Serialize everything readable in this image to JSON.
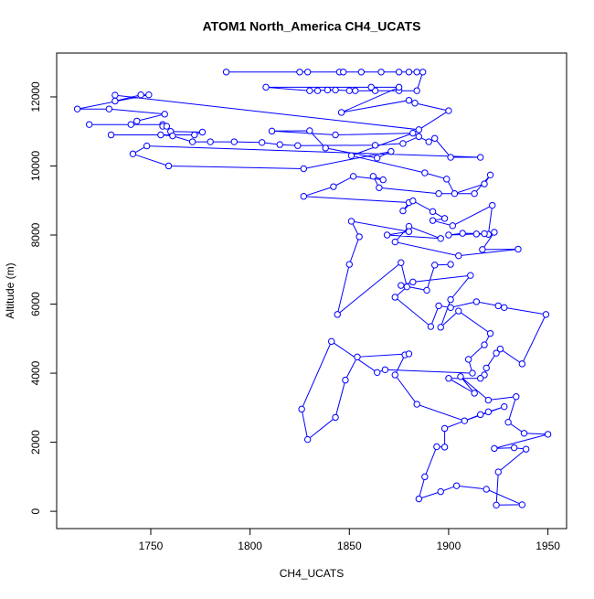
{
  "chart_data": {
    "type": "line",
    "title": "ATOM1 North_America CH4_UCATS",
    "x_label": "CH4_UCATS",
    "y_label": "Altitude (m)",
    "color": "#0000ff",
    "x": [
      1788,
      1825,
      1829,
      1845,
      1847,
      1856,
      1866,
      1875,
      1880,
      1884,
      1887,
      1884,
      1875,
      1863,
      1853,
      1850,
      1843,
      1839,
      1834,
      1830,
      1808,
      1861,
      1875,
      1846,
      1880,
      1883,
      1900,
      1885,
      1732,
      1732,
      1745,
      1749,
      1713,
      1729,
      1757,
      1743,
      1740,
      1719,
      1756,
      1756,
      1758,
      1760,
      1776,
      1772,
      1730,
      1755,
      1761,
      1771,
      1780,
      1792,
      1806,
      1815,
      1824,
      1863,
      1877,
      1885,
      1890,
      1893,
      1901,
      1916,
      1748,
      1741,
      1759,
      1827,
      1871,
      1864,
      1838,
      1830,
      1811,
      1843,
      1882,
      1851,
      1888,
      1899,
      1903,
      1918,
      1921,
      1913,
      1895,
      1865,
      1862,
      1867,
      1852,
      1842,
      1827,
      1880,
      1877,
      1882,
      1892,
      1898,
      1892,
      1902,
      1922,
      1920,
      1914,
      1900,
      1907,
      1918,
      1923,
      1917,
      1935,
      1905,
      1873,
      1880,
      1896,
      1869,
      1880,
      1851,
      1855,
      1850,
      1844,
      1876,
      1879,
      1873,
      1891,
      1895,
      1901,
      1914,
      1925,
      1928,
      1949,
      1937,
      1926,
      1924,
      1919,
      1918,
      1916,
      1900,
      1913,
      1906,
      1920,
      1934,
      1930,
      1938,
      1950,
      1923,
      1933,
      1939,
      1925,
      1924,
      1937,
      1919,
      1904,
      1896,
      1885,
      1888,
      1894,
      1898,
      1898,
      1916,
      1920,
      1928,
      1908,
      1884,
      1873,
      1878,
      1880,
      1854,
      1848,
      1843,
      1829,
      1826,
      1841,
      1864,
      1868,
      1912,
      1910,
      1918,
      1921,
      1905,
      1896,
      1901,
      1911,
      1882,
      1876,
      1889,
      1893,
      1901
    ],
    "values": [
      12720,
      12720,
      12720,
      12720,
      12720,
      12720,
      12720,
      12720,
      12720,
      12720,
      12720,
      12180,
      12180,
      12180,
      12180,
      12180,
      12200,
      12200,
      12180,
      12180,
      12280,
      12280,
      12280,
      11550,
      11900,
      11820,
      11600,
      11050,
      12050,
      11880,
      12060,
      12060,
      11650,
      11650,
      11500,
      11300,
      11200,
      11200,
      11200,
      11150,
      11150,
      11000,
      10980,
      10900,
      10900,
      10900,
      10870,
      10700,
      10700,
      10700,
      10680,
      10620,
      10590,
      10600,
      10650,
      10850,
      10700,
      10800,
      10250,
      10250,
      10580,
      10350,
      10000,
      9920,
      10420,
      10230,
      10520,
      11020,
      11010,
      10900,
      10950,
      10300,
      9800,
      9620,
      9200,
      9480,
      9740,
      9200,
      9200,
      9370,
      9700,
      9600,
      9700,
      9400,
      9120,
      8940,
      8700,
      8990,
      8680,
      8480,
      8420,
      8270,
      8860,
      8020,
      8030,
      8000,
      8050,
      8040,
      8080,
      7580,
      7590,
      7400,
      7800,
      8250,
      7900,
      8000,
      8100,
      8400,
      7950,
      7150,
      5700,
      7200,
      6500,
      6200,
      5350,
      5950,
      5900,
      6070,
      5950,
      5900,
      5700,
      4270,
      4700,
      4580,
      4150,
      3950,
      3850,
      3850,
      3420,
      3900,
      3220,
      3320,
      2580,
      2260,
      2230,
      1820,
      1840,
      1800,
      1140,
      180,
      190,
      640,
      740,
      570,
      360,
      1000,
      1870,
      1860,
      2400,
      2800,
      2880,
      3030,
      2620,
      3100,
      3950,
      4530,
      4560,
      4470,
      3800,
      2720,
      2080,
      2960,
      4920,
      4020,
      4100,
      4000,
      4400,
      4820,
      5150,
      5800,
      5330,
      6130,
      6830,
      6640,
      6540,
      6400,
      7130,
      7150
    ],
    "xlim": [
      1702.6,
      1959.4
    ],
    "xticks": [
      1750,
      1800,
      1850,
      1900,
      1950
    ],
    "ylim": [
      -500,
      13270
    ],
    "yticks": [
      0,
      2000,
      4000,
      6000,
      8000,
      10000,
      12000
    ]
  }
}
